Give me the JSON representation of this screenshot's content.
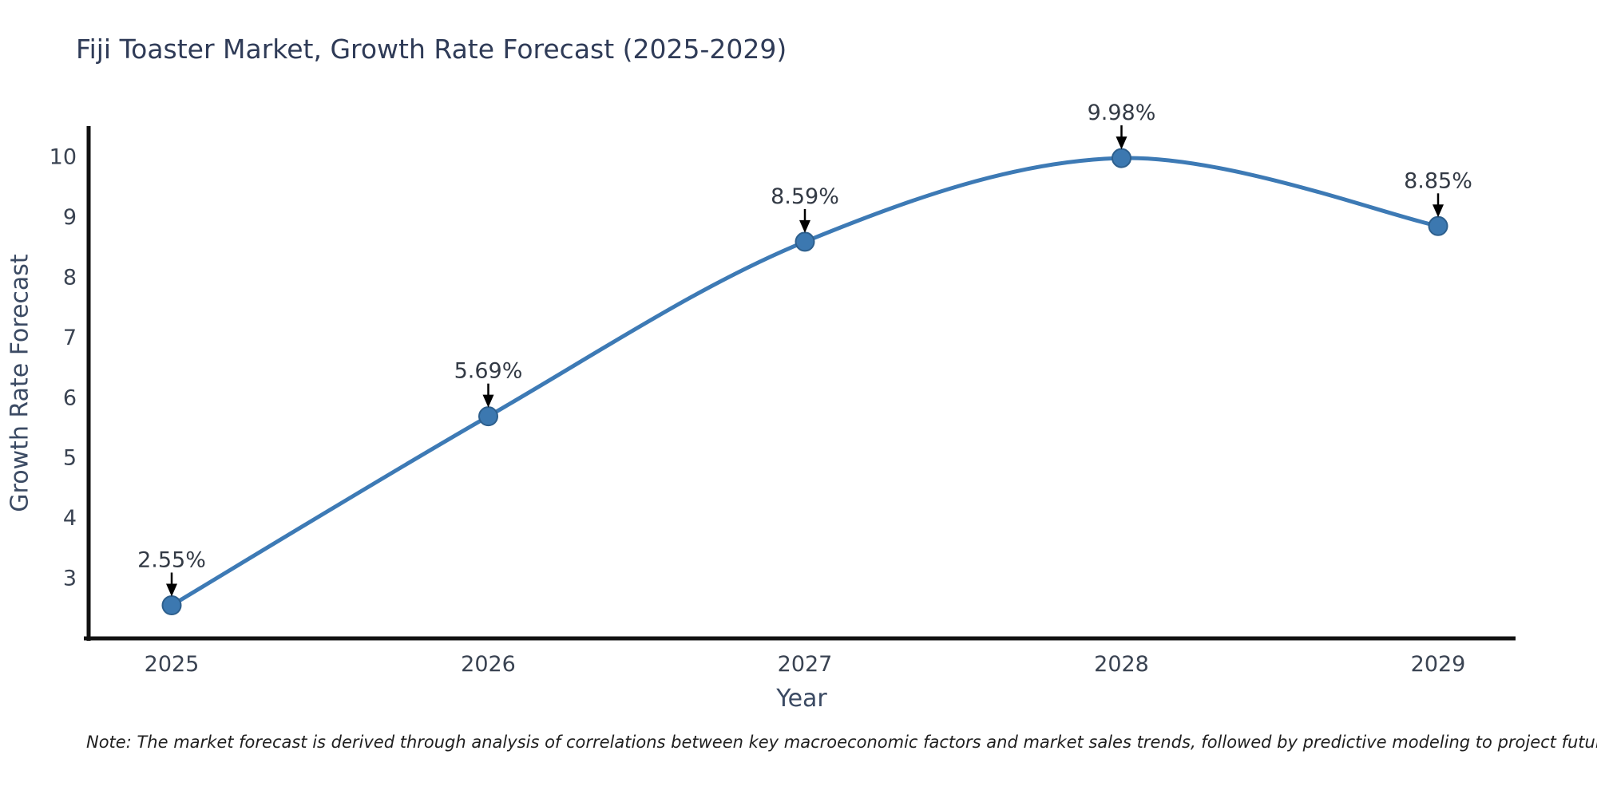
{
  "title": "Fiji Toaster Market, Growth Rate Forecast (2025-2029)",
  "note": "Note: The market forecast is derived through analysis of correlations between key macroeconomic factors and market sales trends, followed by predictive modeling to project future sales",
  "chart_data": {
    "type": "line",
    "title": "Fiji Toaster Market, Growth Rate Forecast (2025-2029)",
    "xlabel": "Year",
    "ylabel": "Growth Rate Forecast",
    "categories": [
      "2025",
      "2026",
      "2027",
      "2028",
      "2029"
    ],
    "values": [
      2.55,
      5.69,
      8.59,
      9.98,
      8.85
    ],
    "data_labels": [
      "2.55%",
      "5.69%",
      "8.59%",
      "9.98%",
      "8.85%"
    ],
    "yticks": [
      3,
      4,
      5,
      6,
      7,
      8,
      9,
      10
    ],
    "ylim": [
      2.0,
      10.55
    ],
    "grid": false,
    "legend_position": "none",
    "smooth": true,
    "colors": {
      "line": "#3d7ab5",
      "marker_fill": "#3c78b0",
      "marker_edge": "#2d5f8d",
      "axis": "#111111",
      "title": "#2f3b57",
      "tick": "#3a4352",
      "annotation": "#333a45",
      "arrow": "#000000",
      "note": "#1f1f1f"
    }
  }
}
